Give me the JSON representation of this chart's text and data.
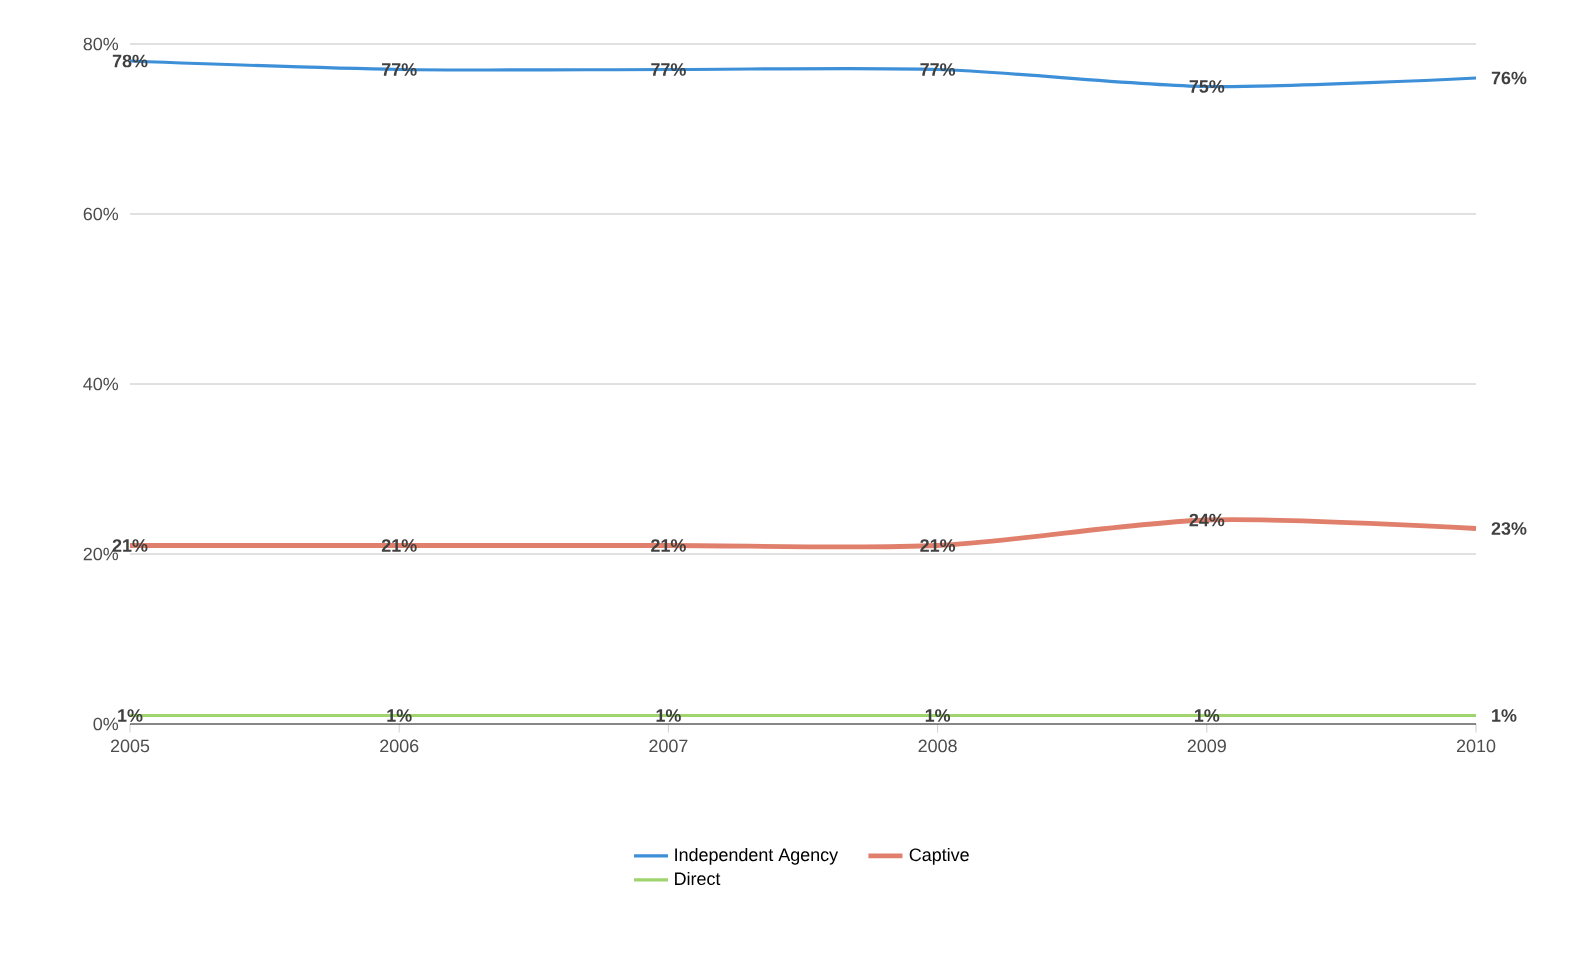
{
  "chart_data": {
    "type": "line",
    "x": [
      2005,
      2006,
      2007,
      2008,
      2009,
      2010
    ],
    "xlim": [
      2005,
      2010
    ],
    "xticks": [
      2005,
      2006,
      2007,
      2008,
      2009,
      2010
    ],
    "ylim": [
      0,
      80
    ],
    "yticks": [
      {
        "value": 0,
        "label": "0%"
      },
      {
        "value": 20,
        "label": "20%"
      },
      {
        "value": 40,
        "label": "40%"
      },
      {
        "value": 60,
        "label": "60%"
      },
      {
        "value": 80,
        "label": "80%"
      }
    ],
    "grid": "y",
    "legend": "bottom",
    "series": [
      {
        "name": "Independent Agency",
        "color": "#3d8fd8",
        "values": [
          78,
          77,
          77,
          77,
          75,
          76
        ],
        "value_labels": [
          "78%",
          "77%",
          "77%",
          "77%",
          "75%",
          "76%"
        ]
      },
      {
        "name": "Captive",
        "color": "#e0806c",
        "values": [
          21,
          21,
          21,
          21,
          24,
          23
        ],
        "value_labels": [
          "21%",
          "21%",
          "21%",
          "21%",
          "24%",
          "23%"
        ]
      },
      {
        "name": "Direct",
        "color": "#9fd46e",
        "values": [
          1,
          1,
          1,
          1,
          1,
          1
        ],
        "value_labels": [
          "1%",
          "1%",
          "1%",
          "1%",
          "1%",
          "1%"
        ]
      }
    ]
  }
}
